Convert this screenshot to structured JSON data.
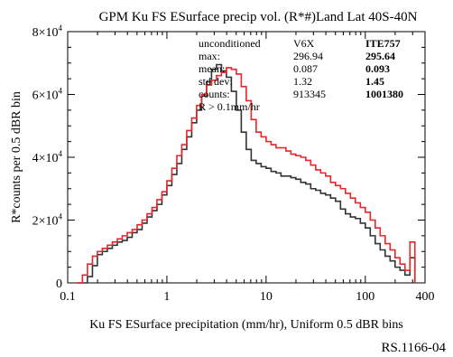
{
  "chart_data": {
    "type": "line",
    "title": "GPM Ku FS ESurface precip vol. (R*#)Land Lat 40S-40N",
    "xlabel": "Ku FS ESurface precipitation (mm/hr), Uniform 0.5 dBR bins",
    "ylabel": "R*counts per 0.5 dBR bin",
    "figure_id": "RS.1166-04",
    "x_scale": "log",
    "xlim": [
      0.1,
      400
    ],
    "ylim": [
      0,
      80000
    ],
    "x_ticks": [
      {
        "value": 0.1,
        "label": "0.1"
      },
      {
        "value": 1,
        "label": "1"
      },
      {
        "value": 10,
        "label": "10"
      },
      {
        "value": 100,
        "label": "100"
      },
      {
        "value": 400,
        "label": "400"
      }
    ],
    "y_ticks": [
      {
        "value": 0,
        "label": "0",
        "exp": ""
      },
      {
        "value": 20000,
        "label": "2×10",
        "exp": "4"
      },
      {
        "value": 40000,
        "label": "4×10",
        "exp": "4"
      },
      {
        "value": 60000,
        "label": "6×10",
        "exp": "4"
      },
      {
        "value": 80000,
        "label": "8×10",
        "exp": "4"
      }
    ],
    "stats_table": {
      "row_labels": [
        "unconditioned",
        "max:",
        "mean:",
        "std dev:",
        "counts:"
      ],
      "columns": [
        {
          "header": "V6X",
          "values": [
            "296.94",
            "0.087",
            "1.32",
            "913345"
          ],
          "color": "#000000"
        },
        {
          "header": "ITE757",
          "values": [
            "295.64",
            "0.093",
            "1.45",
            "1001380"
          ],
          "color": "#e8262b"
        }
      ],
      "note": "R > 0.1mm/hr"
    },
    "series": [
      {
        "name": "V6X",
        "color": "#333333",
        "x": [
          0.133,
          0.149,
          0.168,
          0.188,
          0.211,
          0.237,
          0.266,
          0.299,
          0.335,
          0.376,
          0.422,
          0.473,
          0.531,
          0.596,
          0.668,
          0.75,
          0.841,
          0.944,
          1.059,
          1.189,
          1.334,
          1.496,
          1.679,
          1.884,
          2.113,
          2.371,
          2.661,
          2.985,
          3.35,
          3.758,
          4.217,
          4.732,
          5.309,
          5.957,
          6.683,
          7.499,
          8.414,
          9.441,
          10.59,
          11.89,
          13.34,
          14.96,
          16.79,
          18.84,
          21.13,
          23.71,
          26.61,
          29.85,
          33.5,
          37.58,
          42.17,
          47.32,
          53.09,
          59.57,
          66.83,
          74.99,
          84.14,
          94.41,
          105.9,
          118.9,
          133.4,
          149.6,
          167.9,
          188.4,
          211.3,
          237.1,
          266.1,
          298.5
        ],
        "y": [
          0,
          0,
          2000,
          5500,
          9000,
          10000,
          11000,
          12000,
          13000,
          13500,
          14500,
          16000,
          17000,
          19000,
          21000,
          23000,
          25000,
          28000,
          31000,
          34500,
          38000,
          42500,
          46500,
          51000,
          55000,
          59500,
          64000,
          68000,
          69500,
          67500,
          65500,
          61000,
          55000,
          48000,
          42500,
          39000,
          38000,
          37000,
          36500,
          35500,
          35000,
          34000,
          34000,
          33500,
          33000,
          32000,
          31500,
          30000,
          29500,
          28500,
          28000,
          27000,
          26000,
          23500,
          22000,
          21000,
          20500,
          19000,
          17500,
          15000,
          12500,
          10500,
          8500,
          7000,
          5000,
          4000,
          2500,
          8000
        ]
      },
      {
        "name": "ITE757",
        "color": "#e8262b",
        "x": [
          0.133,
          0.149,
          0.168,
          0.188,
          0.211,
          0.237,
          0.266,
          0.299,
          0.335,
          0.376,
          0.422,
          0.473,
          0.531,
          0.596,
          0.668,
          0.75,
          0.841,
          0.944,
          1.059,
          1.189,
          1.334,
          1.496,
          1.679,
          1.884,
          2.113,
          2.371,
          2.661,
          2.985,
          3.35,
          3.758,
          4.217,
          4.732,
          5.309,
          5.957,
          6.683,
          7.499,
          8.414,
          9.441,
          10.59,
          11.89,
          13.34,
          14.96,
          16.79,
          18.84,
          21.13,
          23.71,
          26.61,
          29.85,
          33.5,
          37.58,
          42.17,
          47.32,
          53.09,
          59.57,
          66.83,
          74.99,
          84.14,
          94.41,
          105.9,
          118.9,
          133.4,
          149.6,
          167.9,
          188.4,
          211.3,
          237.1,
          266.1,
          298.5
        ],
        "y": [
          0,
          2500,
          6000,
          8500,
          10000,
          11000,
          12000,
          13000,
          14000,
          15000,
          16000,
          17000,
          18500,
          20000,
          22000,
          24000,
          26500,
          29000,
          32500,
          36500,
          40500,
          44000,
          48500,
          52500,
          56500,
          60000,
          63000,
          64500,
          66000,
          67000,
          68500,
          68000,
          66500,
          62500,
          58000,
          52000,
          48000,
          46500,
          45000,
          44000,
          43000,
          43000,
          42000,
          41000,
          40500,
          40000,
          39000,
          37500,
          36000,
          35000,
          34000,
          32000,
          31000,
          30000,
          28500,
          27000,
          25500,
          24000,
          22500,
          20000,
          17500,
          15000,
          12500,
          10500,
          8000,
          6000,
          4000,
          13000
        ]
      }
    ],
    "grid": false,
    "legend": "none"
  }
}
